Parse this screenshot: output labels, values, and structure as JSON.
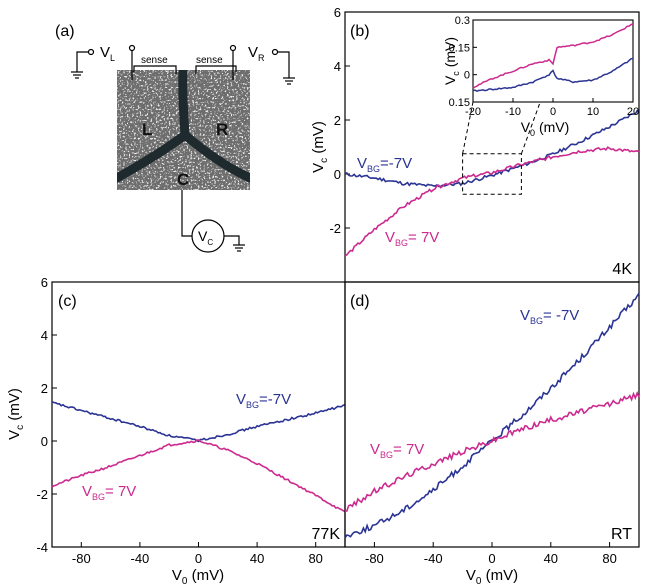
{
  "colors": {
    "blue": "#2b3494",
    "magenta": "#cc2a8e",
    "frame": "#000000",
    "photo_bg": "#6a6a6a"
  },
  "panel_a": {
    "panel_label": "(a)",
    "vl_label": "V",
    "vl_sub": "L",
    "vr_label": "V",
    "vr_sub": "R",
    "sense_left": "sense",
    "sense_right": "sense",
    "region_l": "L",
    "region_r": "R",
    "region_c": "C",
    "meter_label": "V",
    "meter_sub": "C"
  },
  "chart_data": [
    {
      "id": "b",
      "type": "line",
      "panel_label": "(b)",
      "corner_label": "4K",
      "title": "",
      "ylabel": "V_c (mV)",
      "xlim": [
        -100,
        100
      ],
      "ylim": [
        -4,
        6
      ],
      "yticks": [
        -2,
        0,
        2,
        4,
        6
      ],
      "series": [
        {
          "name": "V_BG=-7V",
          "label_main": "V",
          "label_sub": "BG",
          "label_tail": "=-7V",
          "color": "#2b3494",
          "x": [
            -100,
            -80,
            -60,
            -40,
            -20,
            0,
            20,
            40,
            60,
            80,
            100
          ],
          "y": [
            0.0,
            -0.15,
            -0.35,
            -0.45,
            -0.35,
            -0.05,
            0.3,
            0.7,
            1.2,
            1.75,
            2.35
          ]
        },
        {
          "name": "V_BG= 7V",
          "label_main": "V",
          "label_sub": "BG",
          "label_tail": "= 7V",
          "color": "#cc2a8e",
          "x": [
            -100,
            -80,
            -60,
            -40,
            -20,
            0,
            20,
            40,
            60,
            80,
            100
          ],
          "y": [
            -3.05,
            -2.05,
            -1.2,
            -0.55,
            -0.15,
            0.05,
            0.35,
            0.62,
            0.85,
            0.95,
            0.8
          ]
        }
      ],
      "inset": {
        "type": "line",
        "xlabel": "V_0 (mV)",
        "ylabel": "V_c (mV)",
        "xlim": [
          -20,
          20
        ],
        "ylim": [
          -0.15,
          0.3
        ],
        "xticks": [
          -20,
          -10,
          0,
          10,
          20
        ],
        "yticks": [
          0.3,
          0.15,
          0,
          -0.15
        ],
        "ytick_labels": [
          "0.3",
          "0.15",
          "0",
          "0.15"
        ],
        "series": [
          {
            "color": "#2b3494",
            "x": [
              -20,
              -15,
              -10,
              -5,
              -1,
              0,
              1,
              5,
              10,
              15,
              20
            ],
            "y": [
              -0.09,
              -0.08,
              -0.07,
              -0.04,
              0.0,
              0.02,
              -0.02,
              -0.04,
              -0.03,
              0.02,
              0.09
            ]
          },
          {
            "color": "#cc2a8e",
            "x": [
              -20,
              -15,
              -10,
              -5,
              -1,
              0,
              1,
              5,
              10,
              15,
              20
            ],
            "y": [
              -0.07,
              -0.02,
              0.02,
              0.06,
              0.08,
              0.06,
              0.15,
              0.16,
              0.18,
              0.22,
              0.28
            ]
          }
        ]
      }
    },
    {
      "id": "c",
      "type": "line",
      "panel_label": "(c)",
      "corner_label": "77K",
      "title": "",
      "xlabel": "V_0 (mV)",
      "ylabel": "V_c (mV)",
      "xlim": [
        -100,
        100
      ],
      "ylim": [
        -4,
        6
      ],
      "xticks": [
        -80,
        -40,
        0,
        40,
        80
      ],
      "yticks": [
        -4,
        -2,
        0,
        2,
        4,
        6
      ],
      "series": [
        {
          "name": "V_BG=-7V",
          "label_main": "V",
          "label_sub": "BG",
          "label_tail": "=-7V",
          "color": "#2b3494",
          "x": [
            -100,
            -80,
            -60,
            -40,
            -20,
            0,
            20,
            40,
            60,
            80,
            100
          ],
          "y": [
            1.45,
            1.15,
            0.85,
            0.55,
            0.2,
            0.02,
            0.25,
            0.55,
            0.8,
            1.05,
            1.35
          ]
        },
        {
          "name": "V_BG= 7V",
          "label_main": "V",
          "label_sub": "BG",
          "label_tail": "= 7V",
          "color": "#cc2a8e",
          "x": [
            -100,
            -80,
            -60,
            -40,
            -20,
            0,
            20,
            40,
            60,
            80,
            100
          ],
          "y": [
            -1.7,
            -1.3,
            -0.95,
            -0.55,
            -0.15,
            0.02,
            -0.35,
            -0.85,
            -1.45,
            -2.05,
            -2.7
          ]
        }
      ]
    },
    {
      "id": "d",
      "type": "line",
      "panel_label": "(d)",
      "corner_label": "RT",
      "title": "",
      "xlabel": "V_0 (mV)",
      "xlim": [
        -100,
        100
      ],
      "ylim": [
        -4,
        6
      ],
      "xticks": [
        -80,
        -40,
        0,
        40,
        80
      ],
      "series": [
        {
          "name": "V_BG= -7V",
          "label_main": "V",
          "label_sub": "BG",
          "label_tail": "= -7V",
          "color": "#2b3494",
          "x": [
            -100,
            -80,
            -60,
            -40,
            -20,
            0,
            20,
            40,
            60,
            80,
            100
          ],
          "y": [
            -3.6,
            -3.2,
            -2.6,
            -1.85,
            -0.95,
            0.0,
            0.95,
            2.0,
            3.1,
            4.3,
            5.5
          ]
        },
        {
          "name": "V_BG= 7V",
          "label_main": "V",
          "label_sub": "BG",
          "label_tail": "= 7V",
          "color": "#cc2a8e",
          "x": [
            -100,
            -80,
            -60,
            -40,
            -20,
            0,
            20,
            40,
            60,
            80,
            100
          ],
          "y": [
            -2.6,
            -1.9,
            -1.35,
            -0.85,
            -0.4,
            0.0,
            0.45,
            0.8,
            1.1,
            1.4,
            1.75
          ]
        }
      ]
    }
  ]
}
